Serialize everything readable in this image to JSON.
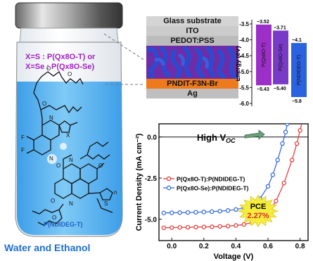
{
  "vial": {
    "label_line1": "X=S : P(Qx8O-T) or",
    "label_line2": "X=Se : P(Qx8O-Se)",
    "polymer_name": "P(NDIDEG-T)",
    "solvent_caption": "Water and Ethanol",
    "colors": {
      "label": "#a020c0",
      "caption": "#1e6fd0",
      "polymer_name": "#1e5fc0",
      "liquid": "#58b4f0"
    }
  },
  "structure": {
    "atom_labels": {
      "O": "O",
      "N": "N",
      "F": "F",
      "S": "S",
      "X": "X",
      "n": "n"
    },
    "layers": {
      "glass": "Glass substrate",
      "ito": "ITO",
      "pedot": "PEDOT:PSS",
      "etl": "PNDIT-F3N-Br",
      "cathode": "Ag"
    },
    "colors": {
      "glass": "#d4d4d4",
      "ito": "#c8c8c8",
      "pedot": "#b8b8b8",
      "active_a": "#6e2da8",
      "active_b": "#2a4bd0",
      "etl": "#ee7a1e",
      "cathode": "#bdbdbd"
    }
  },
  "energy_diagram": {
    "ylabel": "Energy (eV)",
    "ticks": [
      "-3.5",
      "-4.0",
      "-4.5",
      "-5.0",
      "-5.5",
      "-6.0"
    ],
    "bars": [
      {
        "name": "P(Qx8O-T)",
        "lumo_label": "−3.52",
        "homo_label": "−5.43",
        "lumo": -3.52,
        "homo": -5.43,
        "color": "#9b2fc8"
      },
      {
        "name": "P(Qx8O-Se)",
        "lumo_label": "−3.71",
        "homo_label": "−5.40",
        "lumo": -3.71,
        "homo": -5.4,
        "color": "#7a3ac8"
      },
      {
        "name": "P(NDIDEG-T)",
        "lumo_label": "−4.1",
        "homo_label": "−5.8",
        "lumo": -4.1,
        "homo": -5.8,
        "color": "#2a62e0"
      }
    ]
  },
  "chart_data": {
    "type": "line",
    "title": "",
    "xlabel": "Voltage (V)",
    "ylabel": "Current Density (mA cm⁻²)",
    "xlim": [
      -0.08,
      0.85
    ],
    "ylim": [
      -6.3,
      0.8
    ],
    "xticks": [
      0.0,
      0.2,
      0.4,
      0.6,
      0.8
    ],
    "xtick_labels": [
      "0.0",
      "0.2",
      "0.4",
      "0.6",
      "0.8"
    ],
    "yticks": [
      0.0,
      -2.5,
      -5.0
    ],
    "ytick_labels": [
      "0.0",
      "-2.5",
      "-5.0"
    ],
    "series": [
      {
        "name": "P(Qx8O-T):P(NDIDEG-T)",
        "color": "#e83030",
        "x": [
          -0.05,
          0.0,
          0.05,
          0.1,
          0.15,
          0.2,
          0.25,
          0.3,
          0.35,
          0.4,
          0.45,
          0.5,
          0.55,
          0.6,
          0.65,
          0.7,
          0.75,
          0.78,
          0.8,
          0.82
        ],
        "y": [
          -5.52,
          -5.51,
          -5.5,
          -5.49,
          -5.48,
          -5.47,
          -5.46,
          -5.44,
          -5.42,
          -5.38,
          -5.32,
          -5.2,
          -5.0,
          -4.6,
          -3.9,
          -2.8,
          -1.4,
          -0.4,
          0.4,
          1.2
        ]
      },
      {
        "name": "P(Qx8O-Se):P(NDIDEG-T)",
        "color": "#2a62e0",
        "x": [
          -0.05,
          0.0,
          0.05,
          0.1,
          0.15,
          0.2,
          0.25,
          0.3,
          0.35,
          0.4,
          0.45,
          0.5,
          0.55,
          0.6,
          0.63,
          0.66,
          0.69,
          0.71,
          0.72
        ],
        "y": [
          -4.62,
          -4.61,
          -4.6,
          -4.59,
          -4.58,
          -4.56,
          -4.54,
          -4.51,
          -4.47,
          -4.41,
          -4.3,
          -4.1,
          -3.75,
          -3.0,
          -2.3,
          -1.4,
          -0.4,
          0.3,
          0.8
        ]
      }
    ],
    "annotations": {
      "voc": "High V",
      "voc_sub": "OC",
      "pce_line1": "PCE",
      "pce_line2": "2.27%"
    }
  }
}
